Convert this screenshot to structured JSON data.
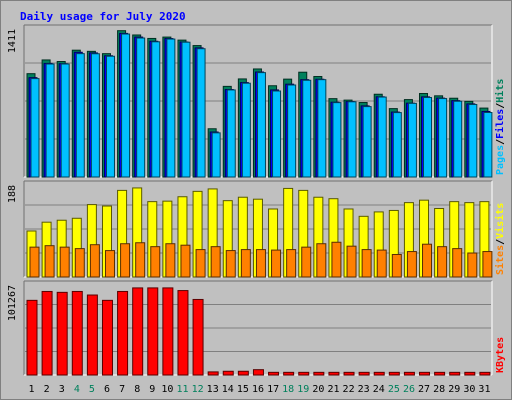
{
  "chart_data": {
    "type": "bar",
    "title": "Daily usage for July 2020",
    "colors": {
      "background": "#c0c0c0",
      "title": "#0000ff",
      "weekend_day": "#00805c",
      "hits": "#00805c",
      "files": "#0000ff",
      "pages": "#00c0ff",
      "visits": "#ffff00",
      "sites": "#ff8000",
      "kbytes": "#ff0000"
    },
    "categories": [
      "1",
      "2",
      "3",
      "4",
      "5",
      "6",
      "7",
      "8",
      "9",
      "10",
      "11",
      "12",
      "13",
      "14",
      "15",
      "16",
      "17",
      "18",
      "19",
      "20",
      "21",
      "22",
      "23",
      "24",
      "25",
      "26",
      "27",
      "28",
      "29",
      "30",
      "31"
    ],
    "weekend_days": [
      "4",
      "5",
      "11",
      "12",
      "18",
      "19",
      "25",
      "26"
    ],
    "panels": [
      {
        "name": "traffic",
        "ymax_label": "1411",
        "ymax": 1411,
        "side_labels": [
          "Pages",
          "Files",
          "Hits"
        ],
        "separator": "/",
        "series": [
          {
            "name": "Hits",
            "values": [
              985,
              1116,
              1101,
              1209,
              1198,
              1176,
              1395,
              1354,
              1321,
              1334,
              1305,
              1253,
              460,
              864,
              935,
              1030,
              870,
              933,
              999,
              958,
              747,
              733,
              710,
              789,
              652,
              738,
              796,
              774,
              751,
              721,
              657
            ]
          },
          {
            "name": "Files",
            "values": [
              947,
              1083,
              1080,
              1189,
              1183,
              1156,
              1369,
              1334,
              1294,
              1320,
              1287,
              1231,
              429,
              834,
              900,
              1001,
              830,
              885,
              928,
              932,
              713,
              719,
              678,
              765,
              619,
              704,
              764,
              752,
              728,
              697,
              625
            ]
          },
          {
            "name": "Pages",
            "values": [
              938,
              1077,
              1077,
              1176,
              1175,
              1151,
              1363,
              1325,
              1289,
              1315,
              1285,
              1223,
              421,
              830,
              894,
              995,
              820,
              877,
              922,
              928,
              709,
              717,
              671,
              762,
              614,
              702,
              758,
              748,
              722,
              691,
              615
            ]
          }
        ]
      },
      {
        "name": "visitors",
        "ymax_label": "188",
        "ymax": 188,
        "side_labels": [
          "Sites",
          "Visits"
        ],
        "separator": "/",
        "series": [
          {
            "name": "Visits",
            "values": [
              94,
              112,
              116,
              120,
              148,
              145,
              177,
              182,
              154,
              155,
              164,
              175,
              180,
              156,
              163,
              159,
              139,
              181,
              177,
              163,
              160,
              139,
              124,
              133,
              136,
              152,
              157,
              140,
              154,
              152,
              154
            ]
          },
          {
            "name": "Sites",
            "values": [
              61,
              64,
              61,
              58,
              66,
              54,
              68,
              70,
              62,
              68,
              65,
              56,
              62,
              54,
              56,
              56,
              55,
              56,
              61,
              68,
              71,
              63,
              56,
              55,
              46,
              52,
              67,
              62,
              58,
              49,
              52
            ]
          }
        ]
      },
      {
        "name": "volume",
        "ymax_label": "101267",
        "ymax": 101267,
        "side_labels": [
          "KBytes"
        ],
        "series": [
          {
            "name": "KBytes",
            "values": [
              84000,
              94000,
              93000,
              94000,
              90000,
              84000,
              94000,
              98000,
              98000,
              98000,
              95000,
              85000,
              3500,
              4200,
              4200,
              6000,
              3000,
              3000,
              3000,
              3000,
              3000,
              3000,
              3000,
              3000,
              3000,
              3000,
              3000,
              3000,
              3000,
              3000,
              3000
            ]
          }
        ]
      }
    ],
    "grid": true,
    "legend": "right-vertical"
  }
}
